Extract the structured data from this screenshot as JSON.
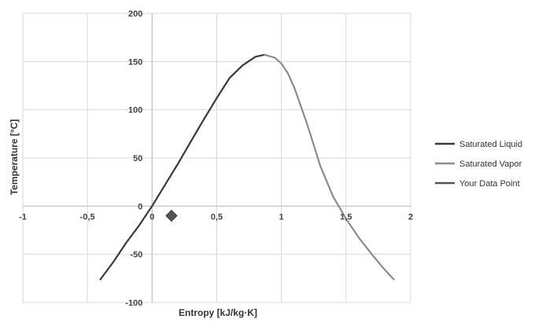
{
  "chart_data": {
    "type": "scatter",
    "title": "",
    "xlabel": "Entropy [kJ/kg·K]",
    "ylabel": "Temperature [°C]",
    "xlim": [
      -1,
      2
    ],
    "ylim": [
      -100,
      200
    ],
    "x_ticks": [
      -1,
      -0.5,
      0,
      0.5,
      1,
      1.5,
      2
    ],
    "x_tick_labels": [
      "-1",
      "-0,5",
      "0",
      "0,5",
      "1",
      "1,5",
      "2"
    ],
    "y_ticks": [
      -100,
      -50,
      0,
      50,
      100,
      150,
      200
    ],
    "y_tick_labels": [
      "-100",
      "-50",
      "0",
      "50",
      "100",
      "150",
      "200"
    ],
    "grid": true,
    "legend_position": "right",
    "series": [
      {
        "name": "Saturated Liquid",
        "color": "#3a3a3a",
        "marker": "none",
        "x": [
          -0.4,
          -0.3,
          -0.2,
          -0.1,
          0.0,
          0.1,
          0.2,
          0.3,
          0.4,
          0.5,
          0.6,
          0.7,
          0.8,
          0.87
        ],
        "y": [
          -76,
          -58,
          -38,
          -20,
          0,
          22,
          44,
          67,
          90,
          112,
          133,
          146,
          155,
          157
        ]
      },
      {
        "name": "Saturated Vapor",
        "color": "#8c8c8c",
        "marker": "none",
        "x": [
          0.87,
          0.95,
          1.0,
          1.05,
          1.1,
          1.2,
          1.3,
          1.4,
          1.5,
          1.6,
          1.7,
          1.8,
          1.87
        ],
        "y": [
          157,
          154,
          148,
          138,
          123,
          85,
          42,
          10,
          -13,
          -33,
          -50,
          -66,
          -76
        ]
      },
      {
        "name": "Your Data Point",
        "color": "#555555",
        "marker": "diamond",
        "x": [
          0.15
        ],
        "y": [
          -10
        ]
      }
    ]
  }
}
